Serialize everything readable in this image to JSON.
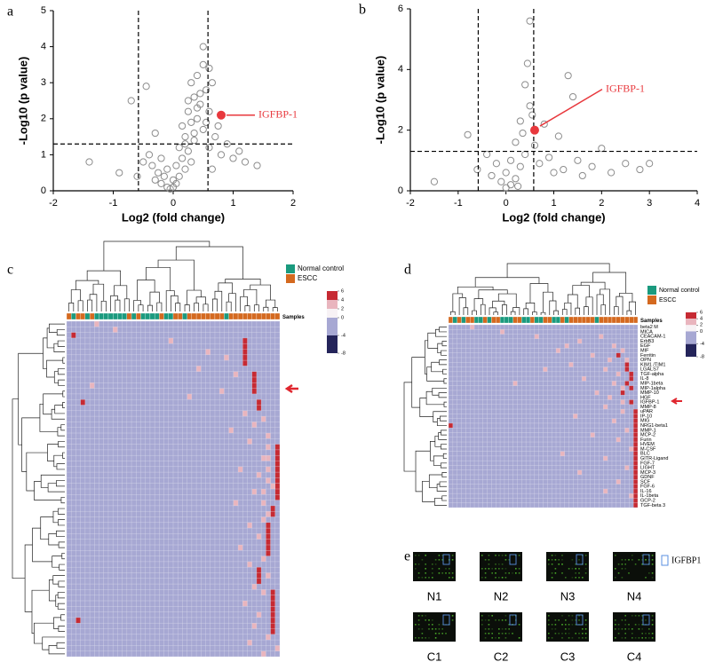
{
  "chart_data": [
    {
      "type": "scatter",
      "panel": "a",
      "xlabel": "Log2 (fold change)",
      "ylabel": "-Log10 (p value)",
      "xlim": [
        -2,
        2
      ],
      "ylim": [
        0,
        5
      ],
      "xticks": [
        -2,
        -1,
        0,
        1,
        2
      ],
      "yticks": [
        0,
        1,
        2,
        3,
        4,
        5
      ],
      "vlines": [
        -0.58,
        0.58
      ],
      "hline": 1.3,
      "points": {
        "color": "#8c8c8c",
        "x": [
          -1.4,
          -0.9,
          -0.7,
          -0.6,
          -0.5,
          -0.45,
          -0.4,
          -0.35,
          -0.3,
          -0.3,
          -0.25,
          -0.2,
          -0.2,
          -0.15,
          -0.1,
          -0.1,
          -0.05,
          0,
          0,
          0.05,
          0.05,
          0.1,
          0.1,
          0.15,
          0.15,
          0.2,
          0.2,
          0.25,
          0.25,
          0.3,
          0.3,
          0.35,
          0.35,
          0.4,
          0.4,
          0.45,
          0.5,
          0.5,
          0.55,
          0.6,
          0.6,
          0.65,
          0.7,
          0.75,
          0.8,
          0.9,
          1.0,
          1.1,
          1.2,
          1.4,
          0.5,
          0.45,
          0.4,
          0.3,
          0.35,
          0.55,
          0.25,
          0.2,
          0.6,
          0.65
        ],
        "y": [
          0.8,
          0.5,
          2.5,
          0.4,
          0.8,
          2.9,
          1.0,
          0.7,
          0.3,
          1.6,
          0.5,
          0.9,
          0.2,
          0.4,
          0.1,
          0.6,
          0.05,
          0.1,
          0.3,
          0.2,
          0.7,
          0.4,
          1.2,
          0.9,
          1.8,
          1.5,
          0.6,
          2.2,
          1.1,
          1.9,
          0.8,
          2.6,
          1.4,
          3.2,
          2.0,
          2.4,
          3.5,
          1.7,
          2.8,
          2.2,
          1.2,
          3.0,
          1.5,
          1.8,
          1.0,
          1.3,
          0.9,
          1.1,
          0.8,
          0.7,
          4.0,
          2.7,
          2.3,
          3.0,
          1.6,
          1.9,
          2.5,
          1.3,
          3.4,
          0.6
        ]
      },
      "highlight": {
        "label": "IGFBP-1",
        "x": 0.8,
        "y": 2.1,
        "color": "#e8383d"
      }
    },
    {
      "type": "scatter",
      "panel": "b",
      "xlabel": "Log2 (fold change)",
      "ylabel": "-Log10 (p value)",
      "xlim": [
        -2,
        4
      ],
      "ylim": [
        0,
        6
      ],
      "xticks": [
        -2,
        -1,
        0,
        1,
        2,
        3,
        4
      ],
      "yticks": [
        0,
        2,
        4,
        6
      ],
      "vlines": [
        -0.58,
        0.58
      ],
      "hline": 1.3,
      "points": {
        "color": "#8c8c8c",
        "x": [
          -1.5,
          -0.8,
          -0.6,
          -0.4,
          -0.3,
          -0.2,
          -0.1,
          0,
          0,
          0.1,
          0.1,
          0.2,
          0.2,
          0.3,
          0.3,
          0.4,
          0.4,
          0.5,
          0.5,
          0.6,
          0.7,
          0.8,
          0.9,
          1.0,
          1.1,
          1.2,
          1.4,
          1.5,
          1.6,
          1.8,
          2.0,
          2.2,
          2.5,
          2.8,
          3.0,
          0.45,
          0.55,
          0.35,
          0.25,
          1.3
        ],
        "y": [
          0.3,
          1.85,
          0.7,
          1.2,
          0.5,
          0.9,
          0.3,
          0.1,
          0.6,
          0.2,
          1.0,
          0.4,
          1.6,
          0.8,
          2.3,
          1.2,
          3.5,
          2.8,
          5.6,
          1.5,
          0.9,
          2.2,
          1.1,
          0.6,
          1.8,
          0.7,
          3.1,
          1.0,
          0.5,
          0.8,
          1.4,
          0.6,
          0.9,
          0.7,
          0.9,
          4.2,
          2.5,
          1.9,
          0.15,
          3.8
        ]
      },
      "highlight": {
        "label": "IGFBP-1",
        "x": 0.6,
        "y": 2.0,
        "color": "#e8383d"
      }
    },
    {
      "type": "heatmap",
      "panel": "c",
      "samples_label": "Samples",
      "series": [
        {
          "name": "Normal control",
          "color": "#1a9a7e"
        },
        {
          "name": "ESCC",
          "color": "#d4691f"
        }
      ],
      "groups": [
        1,
        0,
        1,
        1,
        0,
        1,
        0,
        0,
        0,
        0,
        0,
        0,
        0,
        1,
        0,
        1,
        0,
        0,
        0,
        0,
        1,
        0,
        0,
        1,
        1,
        0,
        1,
        1,
        1,
        1,
        1,
        1,
        1,
        1,
        0,
        1,
        1,
        1,
        1,
        1,
        1,
        1,
        1,
        1,
        1,
        1
      ],
      "rows": [
        null,
        null,
        null,
        null,
        null,
        null,
        null,
        null,
        null,
        null,
        null,
        null,
        null,
        null,
        null,
        null,
        null,
        null,
        null,
        null,
        null,
        null,
        null,
        null,
        null,
        null,
        null,
        null,
        null,
        null,
        null,
        null,
        null,
        null,
        null,
        null,
        null,
        null,
        null,
        null,
        null,
        null,
        null,
        null,
        null,
        null,
        null,
        null,
        null,
        null,
        null,
        null,
        null,
        null,
        null,
        null,
        null,
        null,
        null,
        null
      ],
      "scale_ticks": [
        6,
        4,
        2,
        0,
        -4,
        -8
      ],
      "scale_colors": [
        "#c62a33",
        "#e9b5be",
        "#f7f2f5",
        "#a7a8d3",
        "#24245a"
      ],
      "base_value": -2,
      "cells": [
        [
          3,
          38,
          5
        ],
        [
          4,
          38,
          5
        ],
        [
          5,
          38,
          5
        ],
        [
          6,
          38,
          5
        ],
        [
          7,
          38,
          5
        ],
        [
          9,
          40,
          5
        ],
        [
          10,
          40,
          5
        ],
        [
          11,
          40,
          5
        ],
        [
          12,
          40,
          5
        ],
        [
          14,
          41,
          5
        ],
        [
          15,
          41,
          5
        ],
        [
          22,
          45,
          5
        ],
        [
          23,
          45,
          5
        ],
        [
          24,
          45,
          5
        ],
        [
          25,
          45,
          5
        ],
        [
          26,
          45,
          5
        ],
        [
          27,
          45,
          5
        ],
        [
          28,
          45,
          5
        ],
        [
          29,
          45,
          5
        ],
        [
          30,
          45,
          5
        ],
        [
          31,
          45,
          5
        ],
        [
          33,
          44,
          5
        ],
        [
          34,
          44,
          5
        ],
        [
          36,
          43,
          5
        ],
        [
          37,
          43,
          5
        ],
        [
          38,
          43,
          5
        ],
        [
          39,
          43,
          5
        ],
        [
          40,
          43,
          5
        ],
        [
          41,
          43,
          5
        ],
        [
          44,
          41,
          5
        ],
        [
          45,
          41,
          5
        ],
        [
          46,
          41,
          5
        ],
        [
          48,
          44,
          5
        ],
        [
          49,
          44,
          5
        ],
        [
          50,
          44,
          5
        ],
        [
          51,
          44,
          5
        ],
        [
          52,
          44,
          5
        ],
        [
          53,
          44,
          5
        ],
        [
          54,
          44,
          5
        ],
        [
          55,
          44,
          5
        ],
        [
          2,
          1,
          5
        ],
        [
          14,
          3,
          5
        ],
        [
          53,
          2,
          5
        ],
        [
          0,
          6,
          3
        ],
        [
          1,
          10,
          3
        ],
        [
          3,
          22,
          3
        ],
        [
          5,
          30,
          3
        ],
        [
          6,
          34,
          3
        ],
        [
          8,
          28,
          3
        ],
        [
          9,
          36,
          3
        ],
        [
          11,
          5,
          3
        ],
        [
          12,
          33,
          3
        ],
        [
          13,
          26,
          3
        ],
        [
          16,
          38,
          3
        ],
        [
          17,
          42,
          3
        ],
        [
          18,
          40,
          3
        ],
        [
          19,
          35,
          3
        ],
        [
          20,
          43,
          3
        ],
        [
          21,
          39,
          3
        ],
        [
          24,
          42,
          3
        ],
        [
          26,
          37,
          3
        ],
        [
          27,
          41,
          3
        ],
        [
          29,
          44,
          3
        ],
        [
          30,
          40,
          3
        ],
        [
          32,
          36,
          3
        ],
        [
          35,
          42,
          3
        ],
        [
          36,
          39,
          3
        ],
        [
          38,
          41,
          3
        ],
        [
          40,
          37,
          3
        ],
        [
          42,
          42,
          3
        ],
        [
          43,
          39,
          3
        ],
        [
          45,
          43,
          3
        ],
        [
          47,
          40,
          3
        ],
        [
          48,
          42,
          3
        ],
        [
          50,
          38,
          3
        ],
        [
          52,
          41,
          3
        ],
        [
          54,
          40,
          3
        ],
        [
          56,
          43,
          3
        ],
        [
          57,
          39,
          3
        ],
        [
          58,
          45,
          3
        ],
        [
          59,
          42,
          3
        ],
        [
          22,
          43,
          3
        ],
        [
          24,
          43,
          3
        ],
        [
          26,
          43,
          3
        ],
        [
          28,
          43,
          3
        ],
        [
          30,
          42,
          3
        ],
        [
          32,
          42,
          3
        ],
        [
          34,
          43,
          3
        ]
      ]
    },
    {
      "type": "heatmap",
      "panel": "d",
      "samples_label": "Samples",
      "series": [
        {
          "name": "Normal control",
          "color": "#1a9a7e"
        },
        {
          "name": "ESCC",
          "color": "#d4691f"
        }
      ],
      "groups": [
        1,
        0,
        1,
        0,
        1,
        1,
        0,
        0,
        1,
        0,
        1,
        1,
        0,
        0,
        0,
        1,
        1,
        0,
        0,
        1,
        0,
        0,
        1,
        1,
        0,
        0,
        1,
        0,
        1,
        1,
        1,
        1,
        1,
        1,
        0,
        1,
        1,
        1,
        1,
        1,
        1,
        1,
        1,
        1
      ],
      "rows": [
        "beta2 M",
        "MICA",
        "CEACAM-1",
        "ErbB3",
        "EGF",
        "MIF",
        "Ferritin",
        "OPN",
        "KIM1 /TIM1",
        "LGALS7",
        "TGF-alpha",
        "IL-8",
        "MIP-1beta",
        "MIP-1alpha",
        "MMP-10",
        "HGF",
        "IGFBP-1",
        "MMP-8",
        "uPAR",
        "IP-10",
        "MIG",
        "NRG1-beta1",
        "MMP-1",
        "MCP-2",
        "Furin",
        "HVEM",
        "M-CSF",
        "BLC",
        "GITR-Ligand",
        "FGF-7",
        "LIGHT",
        "MCP-3",
        "GDNF",
        "SCF",
        "FGF-6",
        "IL-16",
        "IL-1beta",
        "GCP-2",
        "TGF-beta 3"
      ],
      "scale_ticks": [
        6,
        4,
        2,
        0,
        -4,
        -8
      ],
      "scale_colors": [
        "#c62a33",
        "#e9b5be",
        "#f7f2f5",
        "#a7a8d3",
        "#24245a"
      ],
      "base_value": -2,
      "cells": [
        [
          18,
          43,
          5
        ],
        [
          19,
          43,
          5
        ],
        [
          20,
          43,
          5
        ],
        [
          21,
          43,
          5
        ],
        [
          22,
          43,
          5
        ],
        [
          23,
          43,
          5
        ],
        [
          24,
          43,
          5
        ],
        [
          25,
          43,
          5
        ],
        [
          26,
          43,
          5
        ],
        [
          27,
          43,
          5
        ],
        [
          28,
          43,
          5
        ],
        [
          29,
          43,
          5
        ],
        [
          30,
          43,
          5
        ],
        [
          31,
          43,
          5
        ],
        [
          32,
          43,
          5
        ],
        [
          33,
          43,
          5
        ],
        [
          34,
          43,
          5
        ],
        [
          35,
          43,
          5
        ],
        [
          36,
          43,
          5
        ],
        [
          37,
          43,
          5
        ],
        [
          38,
          43,
          5
        ],
        [
          8,
          41,
          5
        ],
        [
          9,
          41,
          5
        ],
        [
          10,
          42,
          5
        ],
        [
          11,
          42,
          5
        ],
        [
          12,
          41,
          5
        ],
        [
          13,
          42,
          5
        ],
        [
          14,
          40,
          5
        ],
        [
          6,
          39,
          5
        ],
        [
          21,
          0,
          5
        ],
        [
          16,
          42,
          5
        ],
        [
          0,
          5,
          3
        ],
        [
          1,
          12,
          3
        ],
        [
          2,
          20,
          3
        ],
        [
          2,
          35,
          3
        ],
        [
          3,
          30,
          3
        ],
        [
          4,
          38,
          3
        ],
        [
          5,
          25,
          3
        ],
        [
          5,
          40,
          3
        ],
        [
          6,
          33,
          3
        ],
        [
          7,
          37,
          3
        ],
        [
          7,
          41,
          3
        ],
        [
          8,
          28,
          3
        ],
        [
          9,
          36,
          3
        ],
        [
          10,
          39,
          3
        ],
        [
          11,
          31,
          3
        ],
        [
          12,
          38,
          3
        ],
        [
          13,
          40,
          3
        ],
        [
          14,
          34,
          3
        ],
        [
          15,
          37,
          3
        ],
        [
          16,
          40,
          3
        ],
        [
          17,
          36,
          3
        ],
        [
          18,
          40,
          3
        ],
        [
          20,
          38,
          3
        ],
        [
          22,
          41,
          3
        ],
        [
          24,
          39,
          3
        ],
        [
          26,
          42,
          3
        ],
        [
          28,
          36,
          3
        ],
        [
          30,
          41,
          3
        ],
        [
          33,
          39,
          3
        ],
        [
          36,
          42,
          3
        ],
        [
          4,
          27,
          3
        ],
        [
          9,
          22,
          3
        ],
        [
          12,
          15,
          3
        ],
        [
          19,
          29,
          3
        ],
        [
          23,
          33,
          3
        ],
        [
          27,
          26,
          3
        ],
        [
          31,
          30,
          3
        ],
        [
          35,
          36,
          3
        ]
      ]
    },
    {
      "type": "array",
      "panel": "e",
      "labels": [
        "N1",
        "N2",
        "N3",
        "N4",
        "C1",
        "C2",
        "C3",
        "C4"
      ],
      "legend": "IGFBP1"
    }
  ]
}
